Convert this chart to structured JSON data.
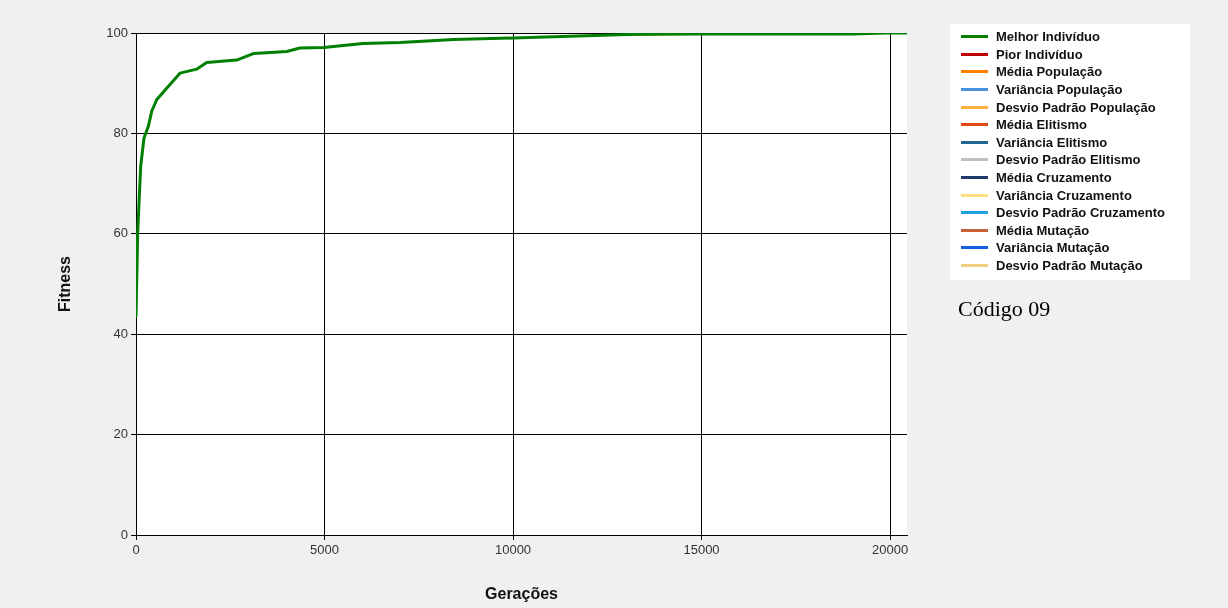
{
  "chart_data": {
    "type": "line",
    "xlabel": "Gerações",
    "ylabel": "Fitness",
    "xlim": [
      0,
      20450
    ],
    "xticks": [
      0,
      5000,
      10000,
      15000,
      20000
    ],
    "ylim": [
      0,
      100
    ],
    "yticks": [
      0,
      20,
      40,
      60,
      80,
      100
    ],
    "grid": true,
    "legend": "right",
    "marker": "none",
    "line_style": "solid",
    "annotations": [
      "Código 09"
    ],
    "series": [
      {
        "name": "Melhor Indivíduo",
        "color": "#008000",
        "x": [
          0,
          44,
          124,
          212,
          327,
          416,
          548,
          813,
          1167,
          1609,
          1874,
          2670,
          3112,
          3996,
          4350,
          4980,
          6020,
          7003,
          8430,
          10000,
          13050,
          14930,
          19020,
          19870,
          20450
        ],
        "values": [
          43.6,
          60.1,
          73.4,
          79.1,
          81.4,
          84.4,
          86.7,
          89.0,
          92.0,
          92.8,
          94.1,
          94.6,
          95.9,
          96.3,
          97.0,
          97.1,
          97.9,
          98.1,
          98.7,
          99.0,
          99.7,
          99.8,
          99.8,
          100,
          100
        ]
      },
      {
        "name": "Pior Indivíduo",
        "color": "#c00000"
      },
      {
        "name": "Média População",
        "color": "#ff8000"
      },
      {
        "name": "Variância População",
        "color": "#4a90e2"
      },
      {
        "name": "Desvio Padrão População",
        "color": "#ffb040"
      },
      {
        "name": "Média Elitismo",
        "color": "#e04a10"
      },
      {
        "name": "Variância Elitismo",
        "color": "#1f6690"
      },
      {
        "name": "Desvio Padrão Elitismo",
        "color": "#c0c0c0"
      },
      {
        "name": "Média Cruzamento",
        "color": "#1f3a6a"
      },
      {
        "name": "Variância Cruzamento",
        "color": "#ffe080"
      },
      {
        "name": "Desvio Padrão Cruzamento",
        "color": "#20a0e0"
      },
      {
        "name": "Média Mutação",
        "color": "#c8603a"
      },
      {
        "name": "Variância Mutação",
        "color": "#1060e0"
      },
      {
        "name": "Desvio Padrão Mutação",
        "color": "#f0d080"
      }
    ]
  }
}
